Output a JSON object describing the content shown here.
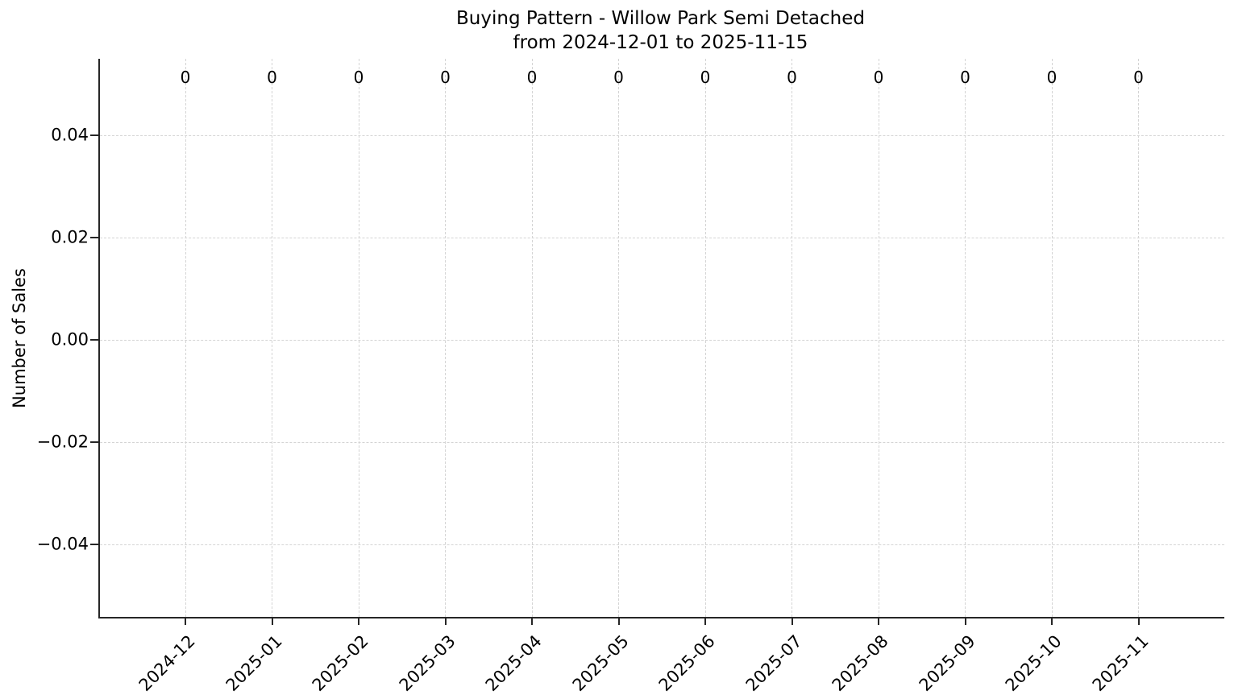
{
  "figure": {
    "title_line1": "Buying Pattern - Willow Park Semi Detached",
    "title_line2": "from 2024-12-01 to 2025-11-15",
    "ylabel": "Number of Sales"
  },
  "chart_data": {
    "type": "bar",
    "title": "Buying Pattern - Willow Park Semi Detached\nfrom 2024-12-01 to 2025-11-15",
    "xlabel": "",
    "ylabel": "Number of Sales",
    "categories": [
      "2024-12",
      "2025-01",
      "2025-02",
      "2025-03",
      "2025-04",
      "2025-05",
      "2025-06",
      "2025-07",
      "2025-08",
      "2025-09",
      "2025-10",
      "2025-11"
    ],
    "values": [
      0,
      0,
      0,
      0,
      0,
      0,
      0,
      0,
      0,
      0,
      0,
      0
    ],
    "bar_labels": [
      "0",
      "0",
      "0",
      "0",
      "0",
      "0",
      "0",
      "0",
      "0",
      "0",
      "0",
      "0"
    ],
    "yticks": [
      0.04,
      0.02,
      0.0,
      -0.02,
      -0.04
    ],
    "ytick_labels": [
      "0.04",
      "0.02",
      "0.00",
      "−0.02",
      "−0.04"
    ],
    "ylim": [
      -0.055,
      0.055
    ],
    "grid": true,
    "grid_style": "dashed",
    "legend": false,
    "x_tick_rotation": 45
  },
  "colors": {
    "background": "#ffffff",
    "spine": "#262626",
    "grid": "#d4d4d4",
    "text": "#000000"
  }
}
